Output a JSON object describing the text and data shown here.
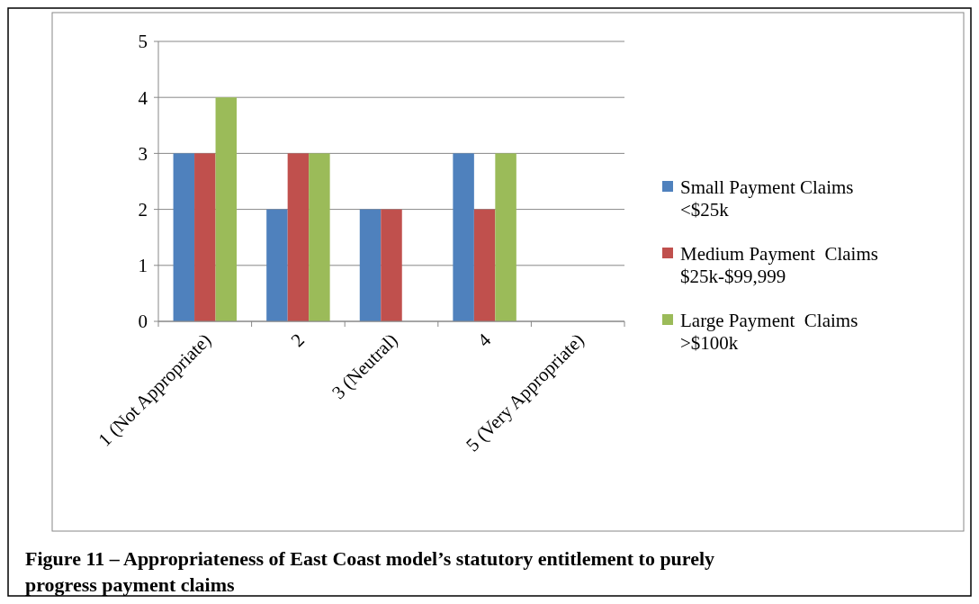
{
  "chart_data": {
    "type": "bar",
    "title": "Figure 11 – Appropriateness of East Coast model’s statutory entitlement to purely progress payment claims",
    "categories": [
      "1 (Not Appropriate)",
      "2",
      "3 (Neutral)",
      "4",
      "5 (Very Appropriate)"
    ],
    "series": [
      {
        "name": "Small Payment Claims <$25k",
        "color": "#4f81bd",
        "values": [
          3,
          2,
          2,
          3,
          0
        ]
      },
      {
        "name": "Medium Payment  Claims $25k-$99,999",
        "color": "#c0504d",
        "values": [
          3,
          3,
          2,
          2,
          0
        ]
      },
      {
        "name": "Large Payment  Claims >$100k",
        "color": "#9bbb59",
        "values": [
          4,
          3,
          0,
          3,
          0
        ]
      }
    ],
    "ylim": [
      0,
      5
    ],
    "yticks": [
      0,
      1,
      2,
      3,
      4,
      5
    ],
    "grid": "y",
    "legend": "right"
  }
}
